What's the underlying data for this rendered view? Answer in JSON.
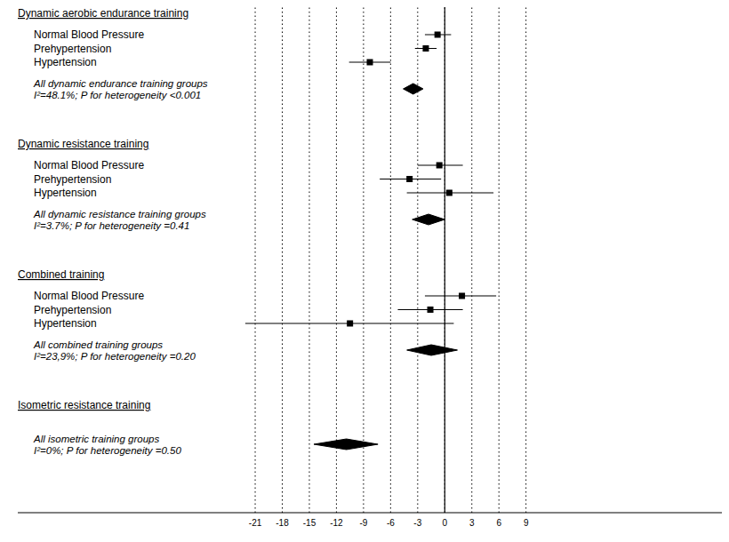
{
  "chart_data": {
    "type": "forest",
    "xlim": [
      -47.3,
      30.7
    ],
    "xticks": [
      -21,
      -18,
      -15,
      -12,
      -9,
      -6,
      -3,
      0,
      3,
      6,
      9
    ],
    "grid": true,
    "reference_line": 0,
    "color": "#000000",
    "marker": "square",
    "groups": [
      {
        "title": "Dynamic aerobic endurance training",
        "rows": [
          {
            "label": "Normal Blood Pressure",
            "value": -0.8,
            "ci_low": -2.2,
            "ci_high": 0.7
          },
          {
            "label": "Prehypertension",
            "value": -2.1,
            "ci_low": -3.3,
            "ci_high": -0.9
          },
          {
            "label": "Hypertension",
            "value": -8.3,
            "ci_low": -10.6,
            "ci_high": -6.0
          }
        ],
        "summary": {
          "label": "All dynamic endurance training groups",
          "note": "I²=48.1%; P for heterogeneity <0.001",
          "value": -3.5,
          "ci_low": -4.6,
          "ci_high": -2.4
        }
      },
      {
        "title": "Dynamic resistance training",
        "rows": [
          {
            "label": "Normal Blood Pressure",
            "value": -0.6,
            "ci_low": -3.0,
            "ci_high": 2.0
          },
          {
            "label": "Prehypertension",
            "value": -3.9,
            "ci_low": -7.2,
            "ci_high": -0.4
          },
          {
            "label": "Hypertension",
            "value": 0.5,
            "ci_low": -4.2,
            "ci_high": 5.4
          }
        ],
        "summary": {
          "label": "All dynamic resistance training groups",
          "note": "I²=3.7%; P for heterogeneity =0.41",
          "value": -1.8,
          "ci_low": -3.6,
          "ci_high": 0.0
        }
      },
      {
        "title": "Combined training",
        "rows": [
          {
            "label": "Normal Blood Pressure",
            "value": 1.9,
            "ci_low": -2.2,
            "ci_high": 5.7
          },
          {
            "label": "Prehypertension",
            "value": -1.6,
            "ci_low": -5.2,
            "ci_high": 2.0
          },
          {
            "label": "Hypertension",
            "value": -10.5,
            "ci_low": -22.1,
            "ci_high": 1.0
          }
        ],
        "summary": {
          "label": "All combined training groups",
          "note": "I²=23,9%; P for heterogeneity =0.20",
          "value": -1.5,
          "ci_low": -4.2,
          "ci_high": 1.4
        }
      },
      {
        "title": "Isometric resistance training",
        "rows": [],
        "summary": {
          "label": "All isometric training groups",
          "note": "I²=0%; P for heterogeneity =0.50",
          "value": -10.9,
          "ci_low": -14.5,
          "ci_high": -7.4
        }
      }
    ]
  }
}
